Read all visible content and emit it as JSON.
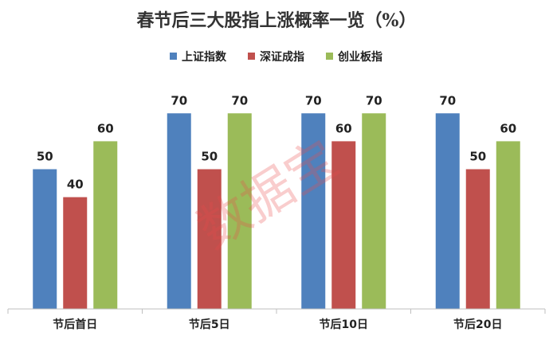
{
  "chart_data": {
    "type": "bar",
    "title": "春节后三大股指上涨概率一览（%）",
    "categories": [
      "节后首日",
      "节后5日",
      "节后10日",
      "节后20日"
    ],
    "series": [
      {
        "name": "上证指数",
        "color": "#4f81bd",
        "values": [
          50,
          70,
          70,
          70
        ]
      },
      {
        "name": "深证成指",
        "color": "#c0504d",
        "values": [
          40,
          50,
          60,
          50
        ]
      },
      {
        "name": "创业板指",
        "color": "#9bbb59",
        "values": [
          60,
          70,
          70,
          60
        ]
      }
    ],
    "ylim": [
      0,
      100
    ],
    "grid": false,
    "legend_position": "top-center",
    "xlabel": "",
    "ylabel": ""
  },
  "watermark": "数据宝"
}
